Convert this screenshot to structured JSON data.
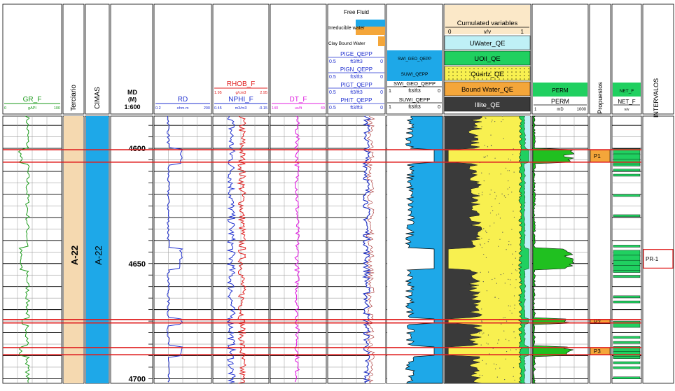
{
  "chart_data": {
    "type": "well-log",
    "depth_axis": {
      "header": "MD",
      "unit": "(M)",
      "scale": "1:600",
      "top": 4586,
      "bottom": 4702,
      "labels": [
        "4600",
        "4650",
        "4700"
      ]
    },
    "tracks": [
      {
        "id": "gr",
        "curves": [
          {
            "name": "GR_F",
            "min": "0",
            "unit": "gAPI",
            "max": "100",
            "color": "#1a9a1a"
          }
        ]
      },
      {
        "id": "tercario",
        "label": "Terciario",
        "zone_label": "A-22",
        "fill": "#f5d9b0"
      },
      {
        "id": "cimas",
        "label": "CIMAS",
        "zone_label": "A-22",
        "fill": "#1ea8e8"
      },
      {
        "id": "rd",
        "curves": [
          {
            "name": "RD",
            "min": "0.2",
            "unit": "ohm.m",
            "max": "200",
            "color": "#2030d0"
          }
        ]
      },
      {
        "id": "dens",
        "curves": [
          {
            "name": "RHOB_F",
            "min": "1.95",
            "unit": "g/cm3",
            "max": "2.95",
            "color": "#e02020"
          },
          {
            "name": "NPHI_F",
            "min": "0.45",
            "unit": "m3/m3",
            "max": "-0.15",
            "color": "#2030d0"
          }
        ]
      },
      {
        "id": "dt",
        "curves": [
          {
            "name": "DT_F",
            "min": "140",
            "unit": "us/ft",
            "max": "40",
            "color": "#e020e0"
          }
        ]
      },
      {
        "id": "poro",
        "fills": [
          "Free Fluid",
          "Irreducible water",
          "Clay Bound Water"
        ],
        "curves": [
          {
            "name": "PIGE_QEPP",
            "min": "0.5",
            "unit": "ft3/ft3",
            "max": "0"
          },
          {
            "name": "PIGN_QEPP",
            "min": "0.5",
            "unit": "ft3/ft3",
            "max": "0"
          },
          {
            "name": "PIGT_QEPP",
            "min": "0.5",
            "unit": "ft3/ft3",
            "max": "0"
          },
          {
            "name": "PHIT_QEPP",
            "min": "0.5",
            "unit": "ft3/ft3",
            "max": "0"
          }
        ]
      },
      {
        "id": "sw",
        "curves": [
          {
            "name": "SWI_GEO_QEPP"
          },
          {
            "name": "SUWI_QEPP"
          },
          {
            "name": "SWI_GEO_QEPP",
            "min": "1",
            "unit": "ft3/ft3",
            "max": "0"
          },
          {
            "name": "SUWI_QEPP",
            "min": "1",
            "unit": "ft3/ft3",
            "max": "0"
          }
        ]
      },
      {
        "id": "cum",
        "title": "Cumulated variables",
        "min": "0",
        "unit": "v/v",
        "max": "1",
        "legend": [
          {
            "name": "UWater_QE",
            "color": "#bff0f6"
          },
          {
            "name": "UOil_QE",
            "color": "#20d060"
          },
          {
            "name": "Quartz_QE",
            "color": "#f8f050"
          },
          {
            "name": "Bound Water_QE",
            "color": "#f4a63a"
          },
          {
            "name": "Illite_QE",
            "color": "#3a3a3a"
          }
        ]
      },
      {
        "id": "perm",
        "title": "PERM",
        "curves": [
          {
            "name": "PERM",
            "min": "1",
            "unit": "mD",
            "max": "1000",
            "color": "#20c020"
          }
        ]
      },
      {
        "id": "propuestos",
        "label": "Propuestos",
        "zones": [
          {
            "name": "P1",
            "top": 4600.6,
            "bottom": 4606
          },
          {
            "name": "P2",
            "top": 4674.3,
            "bottom": 4675.8
          },
          {
            "name": "P3",
            "top": 4686.5,
            "bottom": 4689.6
          }
        ]
      },
      {
        "id": "net",
        "curves": [
          {
            "name": "NET_F"
          },
          {
            "name": "NET_F",
            "unit": "v/v"
          }
        ]
      },
      {
        "id": "intervalos",
        "label": "INTERVALOS",
        "zones": [
          {
            "name": "PR-1",
            "top": 4643.9,
            "bottom": 4652
          }
        ]
      }
    ],
    "highlight_depths": [
      4600.6,
      4606,
      4674.3,
      4675.8,
      4686.5,
      4689.6
    ]
  }
}
